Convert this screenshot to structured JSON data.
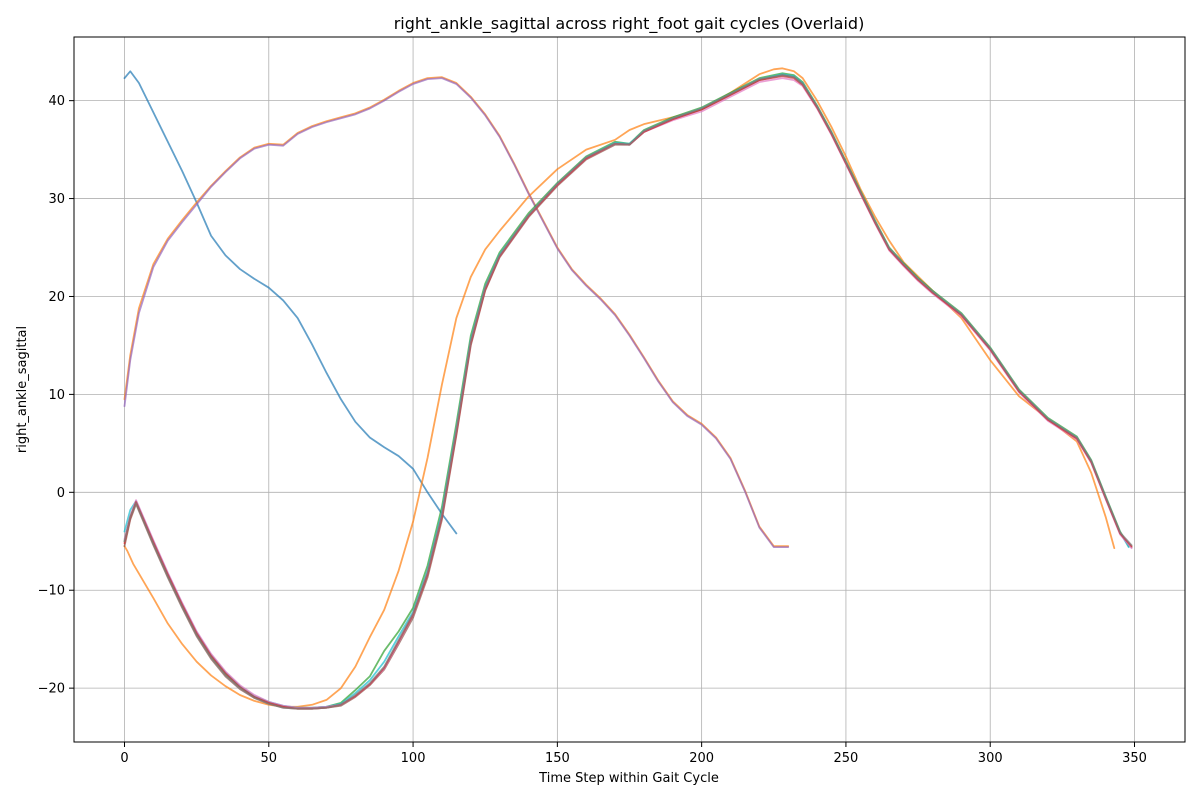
{
  "chart_data": {
    "type": "line",
    "title": "right_ankle_sagittal across right_foot gait cycles (Overlaid)",
    "xlabel": "Time Step within Gait Cycle",
    "ylabel": "right_ankle_sagittal",
    "xlim": [
      -17.5,
      367.5
    ],
    "ylim": [
      -25.5,
      46.5
    ],
    "xticks": [
      0,
      50,
      100,
      150,
      200,
      250,
      300,
      350
    ],
    "yticks": [
      -20,
      -10,
      0,
      10,
      20,
      30,
      40
    ],
    "xtick_labels": [
      "0",
      "50",
      "100",
      "150",
      "200",
      "250",
      "300",
      "350"
    ],
    "ytick_labels": [
      "−20",
      "−10",
      "0",
      "10",
      "20",
      "30",
      "40"
    ],
    "grid": true,
    "legend": "none",
    "series": [
      {
        "color": "#1f77b4",
        "x": [
          0,
          2,
          5,
          10,
          15,
          20,
          25,
          30,
          35,
          40,
          45,
          50,
          55,
          60,
          65,
          70,
          75,
          80,
          85,
          90,
          95,
          100,
          105,
          110,
          115
        ],
        "y": [
          42.3,
          43.0,
          41.8,
          38.8,
          35.8,
          32.8,
          29.6,
          26.2,
          24.2,
          22.8,
          21.8,
          20.9,
          19.6,
          17.8,
          15.1,
          12.2,
          9.5,
          7.2,
          5.6,
          4.6,
          3.7,
          2.4,
          0.0,
          -2.2,
          -4.2
        ]
      },
      {
        "color": "#ff7f0e",
        "x": [
          0,
          1,
          3,
          5,
          8,
          10,
          15,
          20,
          25,
          30,
          35,
          40,
          45,
          50,
          55,
          60,
          65,
          70,
          75,
          80,
          85,
          90,
          95,
          100,
          105,
          110,
          115,
          120,
          125,
          130,
          140,
          150,
          160,
          170,
          175,
          180,
          190,
          200,
          210,
          220,
          225,
          228,
          232,
          235,
          240,
          245,
          250,
          255,
          260,
          265,
          270,
          280,
          290,
          300,
          310,
          320,
          330,
          335,
          340,
          343
        ],
        "y": [
          -5.5,
          -6.0,
          -7.3,
          -8.3,
          -9.8,
          -10.8,
          -13.4,
          -15.5,
          -17.3,
          -18.7,
          -19.8,
          -20.7,
          -21.3,
          -21.7,
          -21.9,
          -21.9,
          -21.7,
          -21.2,
          -20.0,
          -17.8,
          -14.8,
          -12.0,
          -8.0,
          -3.0,
          3.5,
          11.0,
          17.8,
          22.0,
          24.8,
          26.7,
          30.2,
          33.0,
          35.0,
          36.0,
          37.0,
          37.6,
          38.3,
          39.1,
          40.8,
          42.7,
          43.2,
          43.3,
          43.0,
          42.3,
          40.0,
          37.3,
          34.3,
          31.0,
          28.2,
          25.7,
          23.5,
          20.6,
          17.8,
          13.5,
          9.8,
          7.5,
          5.2,
          2.0,
          -2.5,
          -5.7
        ]
      },
      {
        "color": "#ff7f0e",
        "x": [
          0,
          2,
          5,
          10,
          15,
          20,
          25,
          30,
          35,
          40,
          45,
          50,
          55,
          60,
          65,
          70,
          75,
          80,
          85,
          90,
          95,
          100,
          105,
          110,
          115,
          120,
          125,
          130,
          135,
          140,
          145,
          150,
          155,
          160,
          165,
          170,
          175,
          180,
          185,
          190,
          195,
          200,
          205,
          210,
          215,
          220,
          225,
          230
        ],
        "y": [
          9.5,
          14.0,
          18.8,
          23.3,
          25.9,
          27.8,
          29.6,
          31.3,
          32.8,
          34.2,
          35.2,
          35.6,
          35.5,
          36.7,
          37.4,
          37.9,
          38.3,
          38.7,
          39.3,
          40.1,
          41.0,
          41.8,
          42.3,
          42.4,
          41.8,
          40.4,
          38.6,
          36.4,
          33.6,
          30.6,
          27.8,
          25.0,
          22.8,
          21.2,
          19.8,
          18.2,
          16.1,
          13.8,
          11.4,
          9.3,
          7.9,
          7.0,
          5.6,
          3.5,
          0.2,
          -3.5,
          -5.5,
          -5.5
        ]
      },
      {
        "color": "#9467bd",
        "x": [
          0,
          2,
          5,
          10,
          15,
          20,
          25,
          30,
          35,
          40,
          45,
          50,
          55,
          60,
          65,
          70,
          75,
          80,
          85,
          90,
          95,
          100,
          105,
          110,
          115,
          120,
          125,
          130,
          135,
          140,
          145,
          150,
          155,
          160,
          165,
          170,
          175,
          180,
          185,
          190,
          195,
          200,
          205,
          210,
          215,
          220,
          225,
          230
        ],
        "y": [
          8.8,
          13.5,
          18.3,
          23.0,
          25.7,
          27.6,
          29.4,
          31.2,
          32.7,
          34.1,
          35.1,
          35.5,
          35.4,
          36.6,
          37.3,
          37.8,
          38.2,
          38.6,
          39.2,
          40.0,
          40.9,
          41.7,
          42.2,
          42.3,
          41.7,
          40.3,
          38.5,
          36.3,
          33.5,
          30.5,
          27.7,
          24.9,
          22.7,
          21.1,
          19.7,
          18.1,
          16.0,
          13.7,
          11.3,
          9.2,
          7.8,
          6.9,
          5.5,
          3.4,
          0.1,
          -3.6,
          -5.6,
          -5.6
        ]
      },
      {
        "color": "#2ca02c",
        "x": [
          0,
          2,
          4,
          10,
          15,
          20,
          25,
          30,
          35,
          40,
          45,
          50,
          55,
          60,
          65,
          70,
          75,
          80,
          85,
          90,
          95,
          100,
          105,
          110,
          115,
          120,
          125,
          130,
          140,
          150,
          160,
          170,
          175,
          180,
          190,
          200,
          210,
          220,
          228,
          232,
          235,
          240,
          245,
          250,
          255,
          260,
          265,
          270,
          275,
          280,
          290,
          300,
          310,
          320,
          330,
          335,
          340,
          345,
          348
        ],
        "y": [
          -5.0,
          -2.5,
          -1.0,
          -5.2,
          -8.5,
          -11.6,
          -14.5,
          -16.8,
          -18.6,
          -19.9,
          -20.9,
          -21.5,
          -21.9,
          -22.0,
          -22.0,
          -21.9,
          -21.5,
          -20.2,
          -18.8,
          -16.2,
          -14.2,
          -11.8,
          -7.5,
          -1.5,
          7.0,
          16.0,
          21.3,
          24.5,
          28.5,
          31.6,
          34.3,
          35.8,
          35.6,
          37.0,
          38.3,
          39.3,
          40.8,
          42.3,
          42.8,
          42.6,
          41.9,
          39.5,
          36.8,
          33.8,
          30.8,
          27.8,
          25.0,
          23.4,
          21.9,
          20.6,
          18.3,
          14.8,
          10.5,
          7.6,
          5.7,
          3.3,
          -0.4,
          -4.0,
          -5.5
        ]
      },
      {
        "color": "#17becf",
        "x": [
          0,
          2,
          4,
          10,
          15,
          20,
          25,
          30,
          35,
          40,
          45,
          50,
          55,
          60,
          65,
          70,
          75,
          80,
          85,
          90,
          95,
          100,
          105,
          110,
          115,
          120,
          125,
          130,
          140,
          150,
          160,
          170,
          175,
          180,
          190,
          200,
          210,
          220,
          228,
          232,
          235,
          240,
          245,
          250,
          255,
          260,
          265,
          270,
          275,
          280,
          290,
          300,
          310,
          320,
          330,
          335,
          340,
          345,
          348
        ],
        "y": [
          -4.0,
          -1.8,
          -0.9,
          -5.0,
          -8.3,
          -11.4,
          -14.3,
          -16.6,
          -18.4,
          -19.8,
          -20.8,
          -21.4,
          -21.8,
          -22.0,
          -22.0,
          -21.9,
          -21.6,
          -20.5,
          -19.2,
          -17.3,
          -14.7,
          -12.2,
          -8.0,
          -2.0,
          6.5,
          15.6,
          21.0,
          24.3,
          28.3,
          31.5,
          34.2,
          35.7,
          35.6,
          36.9,
          38.2,
          39.2,
          40.7,
          42.2,
          42.7,
          42.5,
          41.8,
          39.4,
          36.7,
          33.7,
          30.7,
          27.7,
          24.9,
          23.3,
          21.8,
          20.5,
          18.2,
          14.7,
          10.4,
          7.5,
          5.6,
          3.2,
          -0.5,
          -4.1,
          -5.6
        ]
      },
      {
        "color": "#8c564b",
        "x": [
          0,
          2,
          4,
          10,
          15,
          20,
          25,
          30,
          35,
          40,
          45,
          50,
          55,
          60,
          65,
          70,
          75,
          80,
          85,
          90,
          95,
          100,
          105,
          110,
          115,
          120,
          125,
          130,
          140,
          150,
          160,
          170,
          175,
          180,
          190,
          200,
          210,
          220,
          228,
          232,
          235,
          240,
          245,
          250,
          255,
          260,
          265,
          270,
          275,
          280,
          290,
          300,
          310,
          320,
          330,
          335,
          340,
          345,
          349
        ],
        "y": [
          -5.5,
          -2.8,
          -1.2,
          -5.4,
          -8.7,
          -11.8,
          -14.7,
          -17.0,
          -18.8,
          -20.1,
          -21.0,
          -21.6,
          -22.0,
          -22.1,
          -22.1,
          -22.0,
          -21.8,
          -20.9,
          -19.7,
          -18.1,
          -15.5,
          -12.8,
          -8.7,
          -2.8,
          5.8,
          15.0,
          20.6,
          24.0,
          28.1,
          31.3,
          34.0,
          35.5,
          35.5,
          36.8,
          38.1,
          39.1,
          40.6,
          42.1,
          42.6,
          42.4,
          41.7,
          39.3,
          36.6,
          33.6,
          30.6,
          27.6,
          24.8,
          23.2,
          21.7,
          20.4,
          18.1,
          14.6,
          10.3,
          7.4,
          5.5,
          3.1,
          -0.6,
          -4.2,
          -5.6
        ]
      },
      {
        "color": "#e377c2",
        "x": [
          0,
          2,
          4,
          10,
          15,
          20,
          25,
          30,
          35,
          40,
          45,
          50,
          55,
          60,
          65,
          70,
          75,
          80,
          85,
          90,
          95,
          100,
          105,
          110,
          115,
          120,
          125,
          130,
          140,
          150,
          160,
          170,
          175,
          180,
          190,
          200,
          210,
          220,
          228,
          232,
          235,
          240,
          245,
          250,
          255,
          260,
          265,
          270,
          275,
          280,
          290,
          300,
          310,
          320,
          330,
          335,
          340,
          345,
          349
        ],
        "y": [
          -4.8,
          -2.4,
          -0.8,
          -4.9,
          -8.2,
          -11.3,
          -14.2,
          -16.5,
          -18.3,
          -19.7,
          -20.7,
          -21.4,
          -21.8,
          -22.0,
          -22.0,
          -21.9,
          -21.7,
          -20.8,
          -19.6,
          -18.0,
          -15.3,
          -12.5,
          -8.3,
          -2.4,
          6.2,
          15.3,
          20.8,
          24.1,
          28.2,
          31.4,
          34.1,
          35.6,
          35.5,
          36.8,
          38.0,
          38.9,
          40.4,
          41.9,
          42.3,
          42.1,
          41.5,
          39.2,
          36.5,
          33.5,
          30.5,
          27.5,
          24.7,
          23.1,
          21.6,
          20.3,
          18.0,
          14.5,
          10.2,
          7.3,
          5.4,
          3.0,
          -0.7,
          -4.3,
          -5.7
        ]
      },
      {
        "color": "#d62728",
        "x": [
          0,
          2,
          4,
          10,
          15,
          20,
          25,
          30,
          35,
          40,
          45,
          50,
          55,
          60,
          65,
          70,
          75,
          80,
          85,
          90,
          95,
          100,
          105,
          110,
          115,
          120,
          125,
          130,
          140,
          150,
          160,
          170,
          175,
          180,
          190,
          200,
          210,
          220,
          228,
          232,
          235,
          240,
          245,
          250,
          255,
          260,
          265,
          270,
          275,
          280,
          290,
          300,
          310,
          320,
          330,
          335,
          340,
          345,
          349
        ],
        "y": [
          -5.2,
          -2.6,
          -1.0,
          -5.1,
          -8.4,
          -11.5,
          -14.4,
          -16.7,
          -18.5,
          -19.9,
          -20.9,
          -21.5,
          -21.9,
          -22.1,
          -22.1,
          -22.0,
          -21.7,
          -20.8,
          -19.6,
          -17.9,
          -15.2,
          -12.5,
          -8.4,
          -2.5,
          6.0,
          15.2,
          20.7,
          24.1,
          28.2,
          31.4,
          34.1,
          35.6,
          35.5,
          36.8,
          38.1,
          39.1,
          40.6,
          42.1,
          42.5,
          42.3,
          41.6,
          39.3,
          36.6,
          33.6,
          30.6,
          27.6,
          24.8,
          23.2,
          21.7,
          20.4,
          18.1,
          14.6,
          10.3,
          7.4,
          5.5,
          3.1,
          -0.6,
          -4.2,
          -5.5
        ]
      },
      {
        "color": "#7f7f7f",
        "x": [
          0,
          2,
          4,
          10,
          15,
          20,
          25,
          30,
          35,
          40,
          45,
          50,
          55,
          60,
          65,
          70,
          75,
          80,
          85,
          90,
          95,
          100,
          105,
          110,
          115,
          120,
          125,
          130,
          140,
          150,
          160,
          170,
          175,
          180,
          190,
          200,
          210,
          220,
          228,
          232,
          235,
          240,
          245,
          250,
          255,
          260,
          265,
          270,
          275,
          280,
          290,
          300,
          310,
          320,
          330,
          335,
          340,
          345,
          349
        ],
        "y": [
          -5.0,
          -2.5,
          -1.1,
          -5.3,
          -8.6,
          -11.7,
          -14.6,
          -16.9,
          -18.7,
          -20.0,
          -21.0,
          -21.6,
          -22.0,
          -22.1,
          -22.1,
          -22.0,
          -21.7,
          -20.7,
          -19.5,
          -17.8,
          -15.1,
          -12.4,
          -8.2,
          -2.3,
          6.3,
          15.4,
          20.9,
          24.2,
          28.3,
          31.5,
          34.2,
          35.6,
          35.5,
          36.9,
          38.2,
          39.2,
          40.7,
          42.2,
          42.6,
          42.4,
          41.7,
          39.4,
          36.7,
          33.7,
          30.7,
          27.7,
          24.9,
          23.3,
          21.8,
          20.5,
          18.2,
          14.7,
          10.4,
          7.5,
          5.6,
          3.2,
          -0.5,
          -4.1,
          -5.4
        ]
      }
    ]
  }
}
